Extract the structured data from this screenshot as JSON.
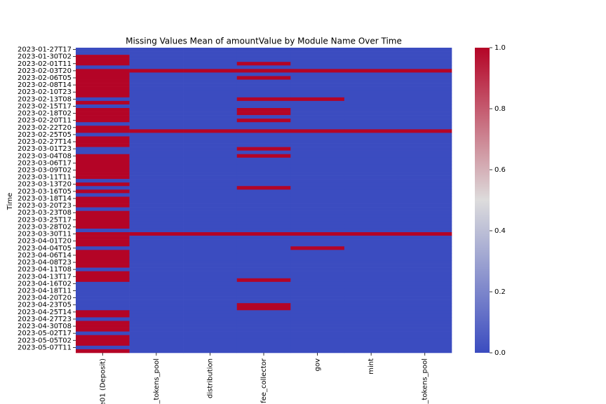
{
  "chart_data": {
    "type": "heatmap",
    "title": "Missing Values Mean of amountValue by Module Name Over Time",
    "ylabel": "Time",
    "x": [
      "e01 (Deposit)",
      "_tokens_pool",
      "distribution",
      "fee_collector",
      "gov",
      "mint",
      "_tokens_pool"
    ],
    "y": [
      "2023-01-27T17",
      null,
      "2023-01-30T02",
      null,
      "2023-02-01T11",
      null,
      "2023-02-03T20",
      null,
      "2023-02-06T05",
      null,
      "2023-02-08T14",
      null,
      "2023-02-10T23",
      null,
      "2023-02-13T08",
      null,
      "2023-02-15T17",
      null,
      "2023-02-18T02",
      null,
      "2023-02-20T11",
      null,
      "2023-02-22T20",
      null,
      "2023-02-25T05",
      null,
      "2023-02-27T14",
      null,
      "2023-03-01T23",
      null,
      "2023-03-04T08",
      null,
      "2023-03-06T17",
      null,
      "2023-03-09T02",
      null,
      "2023-03-11T11",
      null,
      "2023-03-13T20",
      null,
      "2023-03-16T05",
      null,
      "2023-03-18T14",
      null,
      "2023-03-20T23",
      null,
      "2023-03-23T08",
      null,
      "2023-03-25T17",
      null,
      "2023-03-28T02",
      null,
      "2023-03-30T11",
      null,
      "2023-04-01T20",
      null,
      "2023-04-04T05",
      null,
      "2023-04-06T14",
      null,
      "2023-04-08T23",
      null,
      "2023-04-11T08",
      null,
      "2023-04-13T17",
      null,
      "2023-04-16T02",
      null,
      "2023-04-18T11",
      null,
      "2023-04-20T20",
      null,
      "2023-04-23T05",
      null,
      "2023-04-25T14",
      null,
      "2023-04-27T23",
      null,
      "2023-04-30T08",
      null,
      "2023-05-02T17",
      null,
      "2023-05-05T02",
      null,
      "2023-05-07T11",
      null
    ],
    "values": [
      [
        0,
        0,
        0,
        0,
        0,
        0,
        0
      ],
      [
        0,
        0,
        0,
        0,
        0,
        0,
        0
      ],
      [
        1,
        0,
        0,
        0,
        0,
        0,
        0
      ],
      [
        1,
        0,
        0,
        0,
        0,
        0,
        0
      ],
      [
        1,
        0,
        0,
        1,
        0,
        0,
        0
      ],
      [
        0,
        0,
        0,
        0,
        0,
        0,
        0
      ],
      [
        1,
        1,
        1,
        1,
        1,
        1,
        1
      ],
      [
        1,
        0,
        0,
        0,
        0,
        0,
        0
      ],
      [
        1,
        0,
        0,
        1,
        0,
        0,
        0
      ],
      [
        1,
        0,
        0,
        0,
        0,
        0,
        0
      ],
      [
        1,
        0,
        0,
        0,
        0,
        0,
        0
      ],
      [
        1,
        0,
        0,
        0,
        0,
        0,
        0
      ],
      [
        1,
        0,
        0,
        0,
        0,
        0,
        0
      ],
      [
        1,
        0,
        0,
        0,
        0,
        0,
        0
      ],
      [
        0,
        0,
        0,
        1,
        1,
        0,
        0
      ],
      [
        1,
        0,
        0,
        0,
        0,
        0,
        0
      ],
      [
        0,
        0,
        0,
        0,
        0,
        0,
        0
      ],
      [
        1,
        0,
        0,
        1,
        0,
        0,
        0
      ],
      [
        1,
        0,
        0,
        1,
        0,
        0,
        0
      ],
      [
        1,
        0,
        0,
        0,
        0,
        0,
        0
      ],
      [
        1,
        0,
        0,
        1,
        0,
        0,
        0
      ],
      [
        0,
        0,
        0,
        0,
        0,
        0,
        0
      ],
      [
        1,
        0,
        0,
        0,
        0,
        0,
        0
      ],
      [
        1,
        1,
        1,
        1,
        1,
        1,
        1
      ],
      [
        0,
        0,
        0,
        0,
        0,
        0,
        0
      ],
      [
        1,
        0,
        0,
        0,
        0,
        0,
        0
      ],
      [
        1,
        0,
        0,
        0,
        0,
        0,
        0
      ],
      [
        1,
        0,
        0,
        0,
        0,
        0,
        0
      ],
      [
        0,
        0,
        0,
        1,
        0,
        0,
        0
      ],
      [
        0,
        0,
        0,
        0,
        0,
        0,
        0
      ],
      [
        1,
        0,
        0,
        1,
        0,
        0,
        0
      ],
      [
        1,
        0,
        0,
        0,
        0,
        0,
        0
      ],
      [
        1,
        0,
        0,
        0,
        0,
        0,
        0
      ],
      [
        1,
        0,
        0,
        0,
        0,
        0,
        0
      ],
      [
        1,
        0,
        0,
        0,
        0,
        0,
        0
      ],
      [
        1,
        0,
        0,
        0,
        0,
        0,
        0
      ],
      [
        1,
        0,
        0,
        0,
        0,
        0,
        0
      ],
      [
        0,
        0,
        0,
        0,
        0,
        0,
        0
      ],
      [
        1,
        0,
        0,
        0,
        0,
        0,
        0
      ],
      [
        0,
        0,
        0,
        1,
        0,
        0,
        0
      ],
      [
        1,
        0,
        0,
        0,
        0,
        0,
        0
      ],
      [
        0,
        0,
        0,
        0,
        0,
        0,
        0
      ],
      [
        1,
        0,
        0,
        0,
        0,
        0,
        0
      ],
      [
        1,
        0,
        0,
        0,
        0,
        0,
        0
      ],
      [
        1,
        0,
        0,
        0,
        0,
        0,
        0
      ],
      [
        0,
        0,
        0,
        0,
        0,
        0,
        0
      ],
      [
        1,
        0,
        0,
        0,
        0,
        0,
        0
      ],
      [
        1,
        0,
        0,
        0,
        0,
        0,
        0
      ],
      [
        1,
        0,
        0,
        0,
        0,
        0,
        0
      ],
      [
        1,
        0,
        0,
        0,
        0,
        0,
        0
      ],
      [
        1,
        0,
        0,
        0,
        0,
        0,
        0
      ],
      [
        0,
        0,
        0,
        0,
        0,
        0,
        0
      ],
      [
        1,
        1,
        1,
        1,
        1,
        1,
        1
      ],
      [
        1,
        0,
        0,
        0,
        0,
        0,
        0
      ],
      [
        1,
        0,
        0,
        0,
        0,
        0,
        0
      ],
      [
        1,
        0,
        0,
        0,
        0,
        0,
        0
      ],
      [
        0,
        0,
        0,
        0,
        1,
        0,
        0
      ],
      [
        1,
        0,
        0,
        0,
        0,
        0,
        0
      ],
      [
        1,
        0,
        0,
        0,
        0,
        0,
        0
      ],
      [
        1,
        0,
        0,
        0,
        0,
        0,
        0
      ],
      [
        1,
        0,
        0,
        0,
        0,
        0,
        0
      ],
      [
        1,
        0,
        0,
        0,
        0,
        0,
        0
      ],
      [
        0,
        0,
        0,
        0,
        0,
        0,
        0
      ],
      [
        1,
        0,
        0,
        0,
        0,
        0,
        0
      ],
      [
        1,
        0,
        0,
        0,
        0,
        0,
        0
      ],
      [
        1,
        0,
        0,
        1,
        0,
        0,
        0
      ],
      [
        0,
        0,
        0,
        0,
        0,
        0,
        0
      ],
      [
        0,
        0,
        0,
        0,
        0,
        0,
        0
      ],
      [
        0,
        0,
        0,
        0,
        0,
        0,
        0
      ],
      [
        0,
        0,
        0,
        0,
        0,
        0,
        0
      ],
      [
        0,
        0,
        0,
        0,
        0,
        0,
        0
      ],
      [
        0,
        0,
        0,
        0,
        0,
        0,
        0
      ],
      [
        0,
        0,
        0,
        1,
        0,
        0,
        0
      ],
      [
        0,
        0,
        0,
        1,
        0,
        0,
        0
      ],
      [
        1,
        0,
        0,
        0,
        0,
        0,
        0
      ],
      [
        1,
        0,
        0,
        0,
        0,
        0,
        0
      ],
      [
        0,
        0,
        0,
        0,
        0,
        0,
        0
      ],
      [
        1,
        0,
        0,
        0,
        0,
        0,
        0
      ],
      [
        1,
        0,
        0,
        0,
        0,
        0,
        0
      ],
      [
        1,
        0,
        0,
        0,
        0,
        0,
        0
      ],
      [
        0,
        0,
        0,
        0,
        0,
        0,
        0
      ],
      [
        1,
        0,
        0,
        0,
        0,
        0,
        0
      ],
      [
        1,
        0,
        0,
        0,
        0,
        0,
        0
      ],
      [
        1,
        0,
        0,
        0,
        0,
        0,
        0
      ],
      [
        0,
        0,
        0,
        0,
        0,
        0,
        0
      ],
      [
        1,
        0,
        0,
        0,
        0,
        0,
        0
      ]
    ],
    "colormap": [
      "#3b4cc0",
      "#dddcdc",
      "#b40426"
    ],
    "clim": [
      0,
      1
    ],
    "cticks": [
      {
        "value": 0,
        "label": "0.0"
      },
      {
        "value": 0.2,
        "label": "0.2"
      },
      {
        "value": 0.4,
        "label": "0.4"
      },
      {
        "value": 0.6,
        "label": "0.6"
      },
      {
        "value": 0.8,
        "label": "0.8"
      },
      {
        "value": 1,
        "label": "1.0"
      }
    ]
  }
}
